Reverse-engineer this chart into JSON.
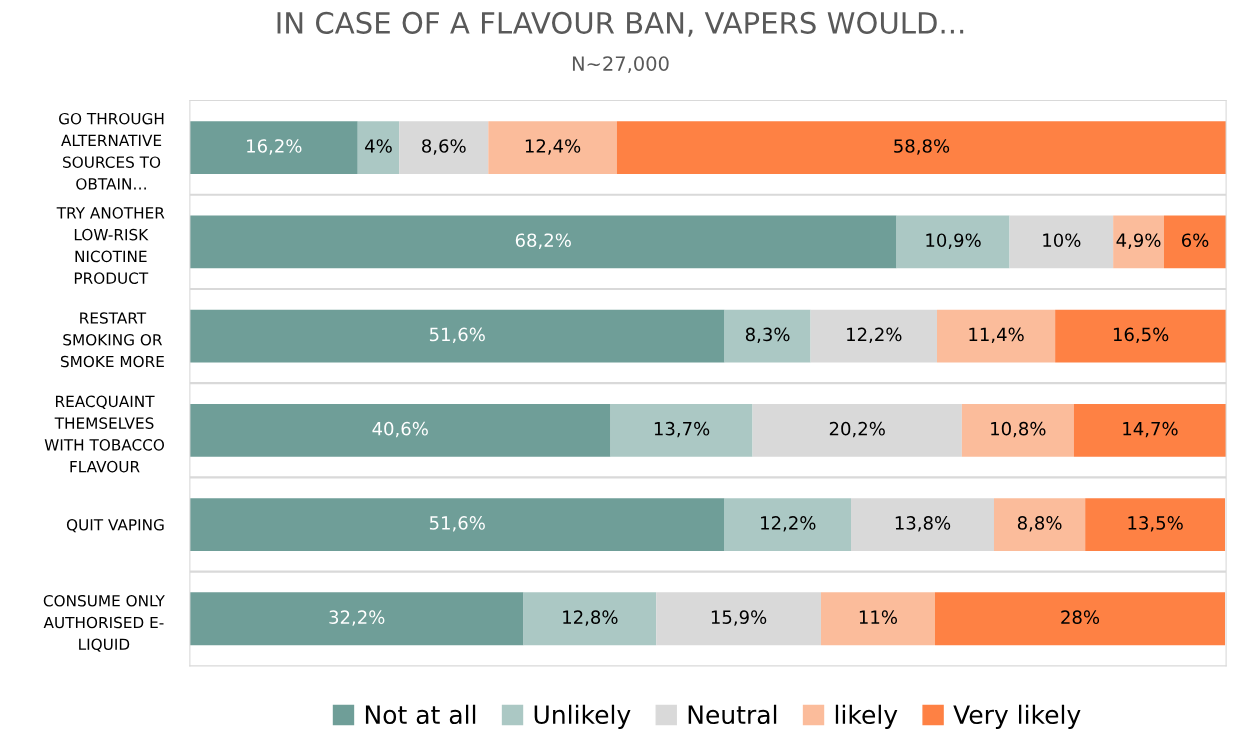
{
  "chart_data": {
    "type": "bar",
    "orientation": "horizontal",
    "stacked": true,
    "title": "IN CASE OF A FLAVOUR BAN, VAPERS WOULD...",
    "subtitle": "N~27,000",
    "categories": [
      "GO THROUGH\nALTERNATIVE\nSOURCES TO\nOBTAIN…",
      "TRY ANOTHER\nLOW-RISK\nNICOTINE\nPRODUCT",
      "RESTART\nSMOKING OR\nSMOKE MORE",
      "REACQUAINT\nTHEMSELVES\nWITH TOBACCO\nFLAVOUR",
      "QUIT VAPING",
      "CONSUME ONLY\nAUTHORISED E-\nLIQUID"
    ],
    "series": [
      {
        "name": "Not at all",
        "color": "#6f9e98",
        "values": [
          16.2,
          68.2,
          51.6,
          40.6,
          51.6,
          32.2
        ],
        "value_labels": [
          "16,2%",
          "68,2%",
          "51,6%",
          "40,6%",
          "51,6%",
          "32,2%"
        ]
      },
      {
        "name": "Unlikely",
        "color": "#abc8c4",
        "values": [
          4,
          10.9,
          8.3,
          13.7,
          12.2,
          12.8
        ],
        "value_labels": [
          "4%",
          "10,9%",
          "8,3%",
          "13,7%",
          "12,2%",
          "12,8%"
        ]
      },
      {
        "name": "Neutral",
        "color": "#d9d9d9",
        "values": [
          8.6,
          10,
          12.2,
          20.2,
          13.8,
          15.9
        ],
        "value_labels": [
          "8,6%",
          "10%",
          "12,2%",
          "20,2%",
          "13,8%",
          "15,9%"
        ]
      },
      {
        "name": "likely",
        "color": "#fbbc9b",
        "values": [
          12.4,
          4.9,
          11.4,
          10.8,
          8.8,
          11
        ],
        "value_labels": [
          "12,4%",
          "4,9%",
          "11,4%",
          "10,8%",
          "8,8%",
          "11%"
        ]
      },
      {
        "name": "Very likely",
        "color": "#fe8144",
        "values": [
          58.8,
          6,
          16.5,
          14.7,
          13.5,
          28
        ],
        "value_labels": [
          "58,8%",
          "6%",
          "16,5%",
          "14,7%",
          "13,5%",
          "28%"
        ]
      }
    ],
    "xlim": [
      0,
      100
    ],
    "tick_labels": "y",
    "legend": "bottom",
    "grid": "y"
  }
}
